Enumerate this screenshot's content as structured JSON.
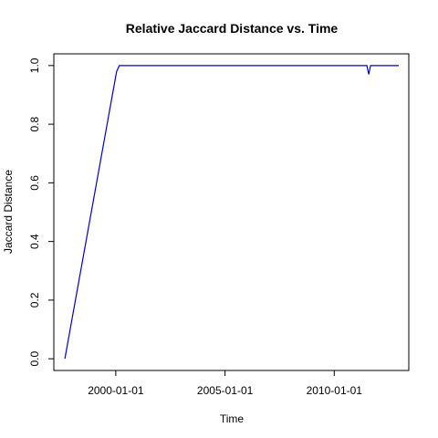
{
  "chart_data": {
    "type": "line",
    "title": "Relative Jaccard Distance vs. Time",
    "xlabel": "Time",
    "ylabel": "Jaccard Distance",
    "x_ticks": [
      "2000-01-01",
      "2005-01-01",
      "2010-01-01"
    ],
    "y_ticks": [
      "0.0",
      "0.2",
      "0.4",
      "0.6",
      "0.8",
      "1.0"
    ],
    "xlim": [
      "1997-03-01",
      "2013-06-01"
    ],
    "ylim": [
      -0.04,
      1.04
    ],
    "grid": false,
    "series_color": "#0000cc",
    "series": [
      {
        "x": [
          "1997-09-01",
          "2000-01-15",
          "2000-03-01",
          "2000-06-01",
          "2011-07-01",
          "2011-08-01",
          "2011-09-01",
          "2011-10-01",
          "2012-12-15"
        ],
        "y": [
          0.0,
          0.98,
          1.0,
          1.0,
          1.0,
          0.97,
          1.0,
          1.0,
          1.0
        ]
      }
    ]
  }
}
